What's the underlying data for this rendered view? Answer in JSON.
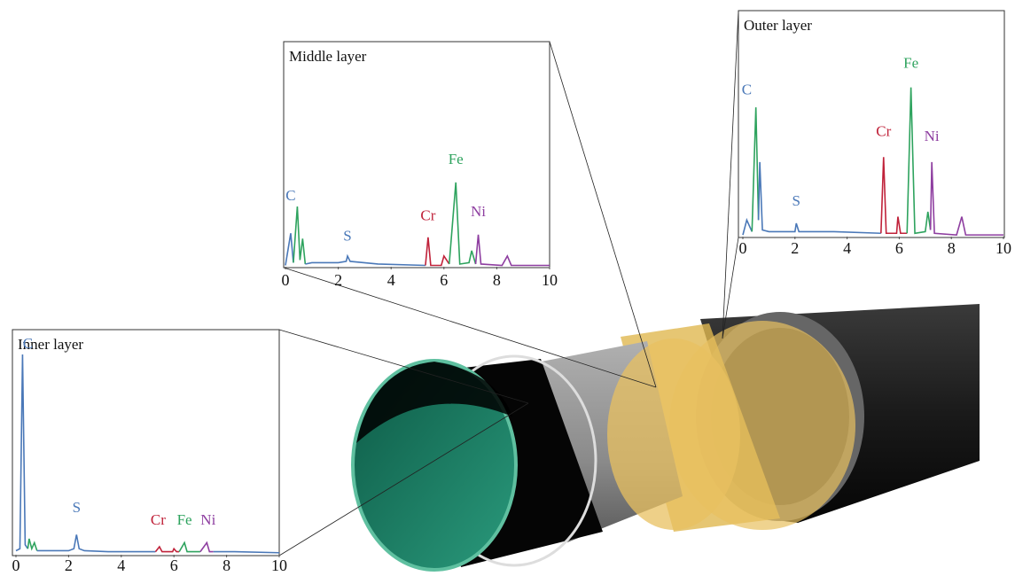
{
  "chart_data": [
    {
      "type": "line",
      "title": "Inner layer",
      "xlim": [
        0,
        10
      ],
      "xticks": [
        0,
        2,
        4,
        6,
        8,
        10
      ],
      "ylim": [
        0,
        100
      ],
      "series": [
        {
          "color": "#4a78b8",
          "x": [
            0,
            0.15,
            0.25,
            0.35,
            0.45
          ],
          "values": [
            2,
            3,
            100,
            5,
            3
          ]
        },
        {
          "color": "#2ea35e",
          "x": [
            0.45,
            0.5,
            0.6,
            0.7,
            0.8
          ],
          "values": [
            3,
            8,
            3,
            6,
            2
          ]
        },
        {
          "color": "#4a78b8",
          "x": [
            0.8,
            1,
            1.5,
            2,
            2.2,
            2.3,
            2.4,
            2.6,
            3.5,
            4.5,
            5.3
          ],
          "values": [
            2,
            2,
            2,
            2,
            3,
            10,
            3,
            2,
            1.5,
            1.5,
            1.5
          ]
        },
        {
          "color": "#c0223a",
          "x": [
            5.3,
            5.45,
            5.55,
            5.95,
            6,
            6.1,
            6.2
          ],
          "values": [
            1.5,
            4,
            1.5,
            1.5,
            3,
            1.5,
            1.5
          ]
        },
        {
          "color": "#2ea35e",
          "x": [
            6.2,
            6.4,
            6.5,
            7
          ],
          "values": [
            1.5,
            6,
            1.5,
            1.5
          ]
        },
        {
          "color": "#8e3ea0",
          "x": [
            7,
            7.25,
            7.35,
            7.5
          ],
          "values": [
            1.5,
            6,
            1.5,
            1.5
          ]
        },
        {
          "color": "#4a78b8",
          "x": [
            7.5,
            8.3,
            10
          ],
          "values": [
            1.5,
            1.5,
            1
          ]
        }
      ],
      "annotations": [
        {
          "text": "C",
          "x": 0.45,
          "y": 100,
          "color": "#4a78b8"
        },
        {
          "text": "S",
          "x": 2.3,
          "y": 18,
          "color": "#4a78b8"
        },
        {
          "text": "Cr",
          "x": 5.4,
          "y": 12,
          "color": "#c0223a"
        },
        {
          "text": "Fe",
          "x": 6.4,
          "y": 12,
          "color": "#2ea35e"
        },
        {
          "text": "Ni",
          "x": 7.3,
          "y": 12,
          "color": "#8e3ea0"
        }
      ]
    },
    {
      "type": "line",
      "title": "Middle layer",
      "xlim": [
        0,
        10
      ],
      "xticks": [
        0,
        2,
        4,
        6,
        8,
        10
      ],
      "ylim": [
        0,
        100
      ],
      "series": [
        {
          "color": "#4a78b8",
          "x": [
            0,
            0.2,
            0.3
          ],
          "values": [
            1,
            25,
            3
          ]
        },
        {
          "color": "#2ea35e",
          "x": [
            0.3,
            0.45,
            0.55,
            0.65,
            0.75
          ],
          "values": [
            3,
            45,
            5,
            21,
            2
          ]
        },
        {
          "color": "#4a78b8",
          "x": [
            0.75,
            1,
            2,
            2.3,
            2.35,
            2.45,
            3.5,
            5.3
          ],
          "values": [
            2,
            3,
            3,
            4,
            8,
            4,
            2,
            1
          ]
        },
        {
          "color": "#c0223a",
          "x": [
            5.3,
            5.4,
            5.5,
            5.9,
            6,
            6.2
          ],
          "values": [
            1,
            22,
            1,
            1,
            8,
            2
          ]
        },
        {
          "color": "#2ea35e",
          "x": [
            6.2,
            6.45,
            6.6,
            6.95,
            7.05,
            7.2
          ],
          "values": [
            2,
            63,
            2,
            3,
            12,
            2
          ]
        },
        {
          "color": "#8e3ea0",
          "x": [
            7.2,
            7.3,
            7.4,
            8.2,
            8.4,
            8.55,
            10
          ],
          "values": [
            2,
            24,
            2,
            1,
            8,
            1,
            1
          ]
        }
      ],
      "annotations": [
        {
          "text": "C",
          "x": 0.2,
          "y": 45,
          "color": "#4a78b8"
        },
        {
          "text": "S",
          "x": 2.35,
          "y": 15,
          "color": "#4a78b8"
        },
        {
          "text": "Cr",
          "x": 5.4,
          "y": 30,
          "color": "#c0223a"
        },
        {
          "text": "Fe",
          "x": 6.45,
          "y": 72,
          "color": "#2ea35e"
        },
        {
          "text": "Ni",
          "x": 7.3,
          "y": 33,
          "color": "#8e3ea0"
        }
      ]
    },
    {
      "type": "line",
      "title": "Outer layer",
      "xlim": [
        0,
        10
      ],
      "xticks": [
        0,
        2,
        4,
        6,
        8,
        10
      ],
      "ylim": [
        0,
        100
      ],
      "series": [
        {
          "color": "#4a78b8",
          "x": [
            0,
            0.15,
            0.35
          ],
          "values": [
            1,
            10,
            3
          ]
        },
        {
          "color": "#2ea35e",
          "x": [
            0.35,
            0.5,
            0.6
          ],
          "values": [
            3,
            78,
            10
          ]
        },
        {
          "color": "#4a78b8",
          "x": [
            0.6,
            0.65,
            0.75,
            1,
            2,
            2.05,
            2.15,
            3.5,
            5.3
          ],
          "values": [
            10,
            45,
            4,
            3,
            3,
            8,
            3,
            3,
            2
          ]
        },
        {
          "color": "#c0223a",
          "x": [
            5.3,
            5.4,
            5.5,
            5.9,
            5.95,
            6.05,
            6.3
          ],
          "values": [
            2,
            48,
            2,
            2,
            12,
            2,
            2
          ]
        },
        {
          "color": "#2ea35e",
          "x": [
            6.3,
            6.45,
            6.6,
            7,
            7.1,
            7.2
          ],
          "values": [
            2,
            90,
            2,
            3,
            15,
            4
          ]
        },
        {
          "color": "#8e3ea0",
          "x": [
            7.2,
            7.25,
            7.35,
            8.2,
            8.4,
            8.55,
            10
          ],
          "values": [
            4,
            45,
            2,
            1,
            12,
            1,
            1
          ]
        }
      ],
      "annotations": [
        {
          "text": "C",
          "x": 0.15,
          "y": 82,
          "color": "#4a78b8"
        },
        {
          "text": "S",
          "x": 2.05,
          "y": 15,
          "color": "#4a78b8"
        },
        {
          "text": "Cr",
          "x": 5.4,
          "y": 57,
          "color": "#c0223a"
        },
        {
          "text": "Fe",
          "x": 6.45,
          "y": 98,
          "color": "#2ea35e"
        },
        {
          "text": "Ni",
          "x": 7.25,
          "y": 54,
          "color": "#8e3ea0"
        }
      ]
    }
  ]
}
